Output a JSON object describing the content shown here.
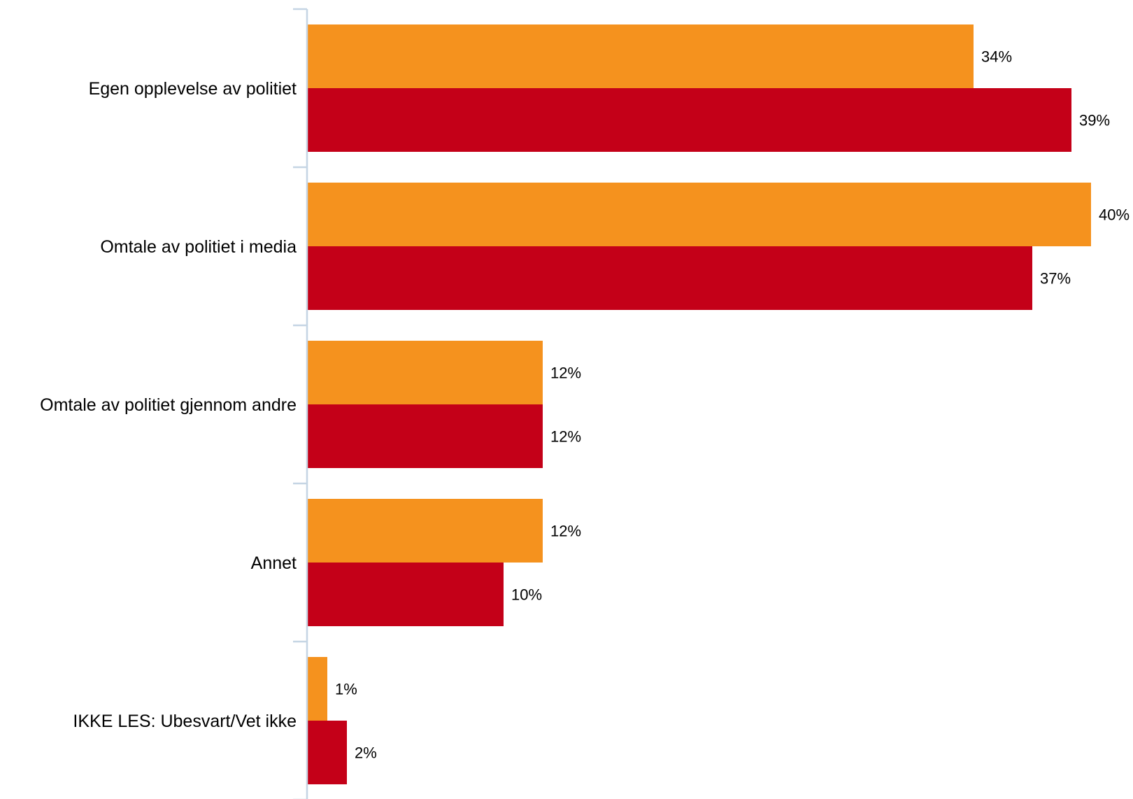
{
  "chart_data": {
    "type": "bar",
    "orientation": "horizontal",
    "categories": [
      "Egen opplevelse av politiet",
      "Omtale av politiet i media",
      "Omtale av politiet gjennom andre",
      "Annet",
      "IKKE LES: Ubesvart/Vet ikke"
    ],
    "series": [
      {
        "color": "#F5921E",
        "values": [
          34,
          40,
          12,
          12,
          1
        ],
        "labels": [
          "34%",
          "40%",
          "12%",
          "12%",
          "1%"
        ]
      },
      {
        "color": "#C40018",
        "values": [
          39,
          37,
          12,
          10,
          2
        ],
        "labels": [
          "39%",
          "37%",
          "12%",
          "10%",
          "2%"
        ]
      }
    ],
    "unit": "%",
    "xlim": [
      0,
      40
    ],
    "grid": false,
    "legend": "none",
    "axis_color": "#C5D5E4"
  }
}
